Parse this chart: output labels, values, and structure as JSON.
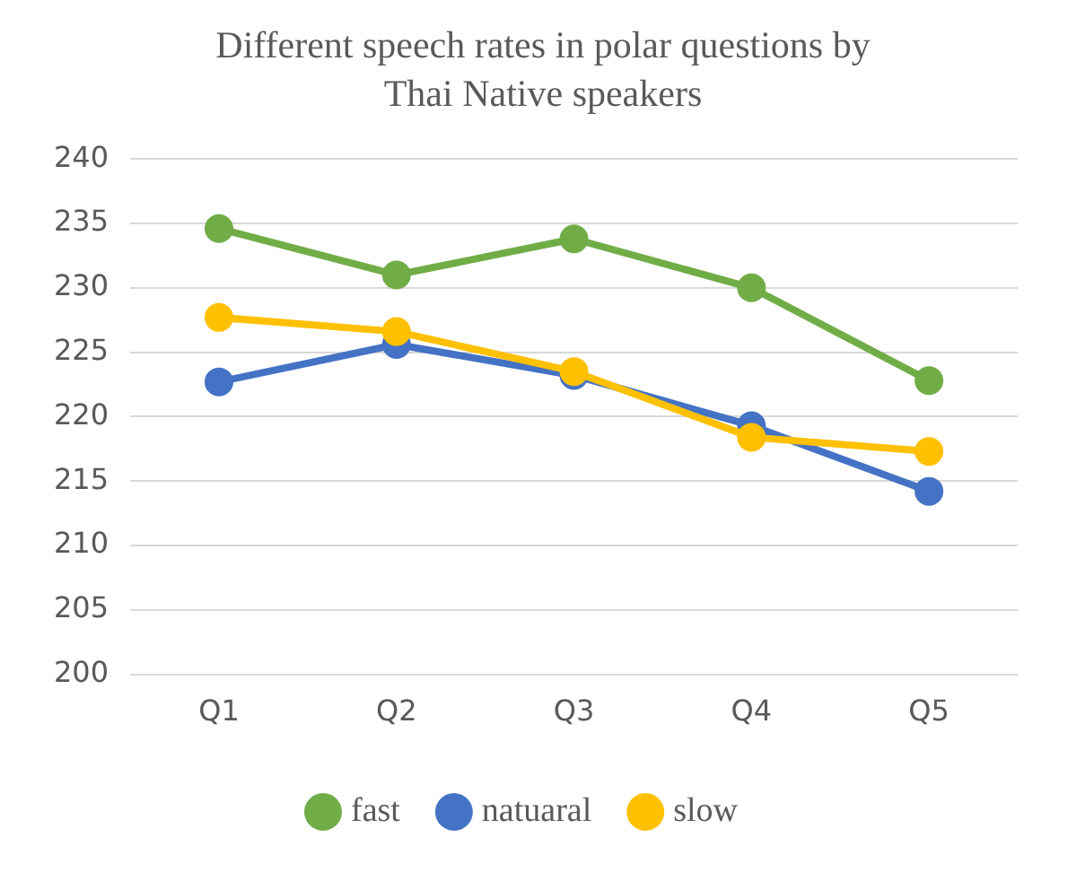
{
  "chart_data": {
    "type": "line",
    "title": "Different speech rates in polar questions by Thai Native speakers",
    "categories": [
      "Q1",
      "Q2",
      "Q3",
      "Q4",
      "Q5"
    ],
    "series": [
      {
        "name": "fast",
        "color": "#70ad47",
        "values": [
          234.6,
          231.0,
          233.8,
          230.0,
          222.8
        ]
      },
      {
        "name": "natuaral",
        "color": "#4472c4",
        "values": [
          222.7,
          225.6,
          223.2,
          219.3,
          214.2
        ]
      },
      {
        "name": "slow",
        "color": "#ffc000",
        "values": [
          227.7,
          226.6,
          223.5,
          218.4,
          217.3
        ]
      }
    ],
    "ylim": [
      200,
      240
    ],
    "yticks": [
      200,
      205,
      210,
      215,
      220,
      225,
      230,
      235,
      240
    ],
    "grid": "y",
    "legend": "bottom",
    "marker": "circle",
    "line_style": "solid"
  }
}
